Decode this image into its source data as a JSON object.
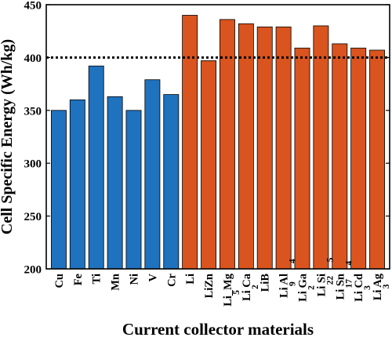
{
  "chart_data": {
    "type": "bar",
    "title": "",
    "xlabel": "Current collector materials",
    "ylabel": "Cell Specific Energy (Wh/kg)",
    "ylim": [
      200,
      450
    ],
    "yticks": [
      200,
      250,
      300,
      350,
      400,
      450
    ],
    "reference_line": {
      "y": 400,
      "style": "dotted",
      "color": "#000000"
    },
    "grid": false,
    "colors": {
      "group_a": "#1f72bd",
      "group_b": "#d9541e"
    },
    "bars": [
      {
        "label": "Cu",
        "main": "Cu",
        "sub": [],
        "value": 350,
        "group": "group_a"
      },
      {
        "label": "Fe",
        "main": "Fe",
        "sub": [],
        "value": 360,
        "group": "group_a"
      },
      {
        "label": "Ti",
        "main": "Ti",
        "sub": [],
        "value": 392,
        "group": "group_a"
      },
      {
        "label": "Mn",
        "main": "Mn",
        "sub": [],
        "value": 363,
        "group": "group_a"
      },
      {
        "label": "Ni",
        "main": "Ni",
        "sub": [],
        "value": 350,
        "group": "group_a"
      },
      {
        "label": "V",
        "main": "V",
        "sub": [],
        "value": 379,
        "group": "group_a"
      },
      {
        "label": "Cr",
        "main": "Cr",
        "sub": [],
        "value": 365,
        "group": "group_a"
      },
      {
        "label": "Li",
        "main": "Li",
        "sub": [],
        "value": 440,
        "group": "group_b"
      },
      {
        "label": "LiZn",
        "main": "LiZn",
        "sub": [],
        "value": 397,
        "group": "group_b"
      },
      {
        "label": "Li_Mg_5",
        "main": "Li_Mg",
        "sub": [
          "5"
        ],
        "value": 436,
        "group": "group_b"
      },
      {
        "label": "Li_2Ca",
        "main": "Li Ca",
        "sub": [
          "2"
        ],
        "value": 432,
        "group": "group_b"
      },
      {
        "label": "LiB",
        "main": "LiB",
        "sub": [],
        "value": 429,
        "group": "group_b"
      },
      {
        "label": "Li_9Al_4",
        "main": "Li Al",
        "sub": [
          "9",
          "4"
        ],
        "value": 429,
        "group": "group_b"
      },
      {
        "label": "Li_2Ga",
        "main": "Li Ga",
        "sub": [
          "2"
        ],
        "value": 409,
        "group": "group_b"
      },
      {
        "label": "Li_22Si_5",
        "main": "Li Si",
        "sub": [
          "22",
          "5"
        ],
        "value": 430,
        "group": "group_b"
      },
      {
        "label": "Li_17Sn_4",
        "main": "Li Sn",
        "sub": [
          "17",
          "4"
        ],
        "value": 413,
        "group": "group_b"
      },
      {
        "label": "Li_3Cd",
        "main": "Li Cd",
        "sub": [
          "3"
        ],
        "value": 409,
        "group": "group_b"
      },
      {
        "label": "Li_3Ag",
        "main": "Li Ag",
        "sub": [
          "3"
        ],
        "value": 407,
        "group": "group_b"
      }
    ]
  }
}
